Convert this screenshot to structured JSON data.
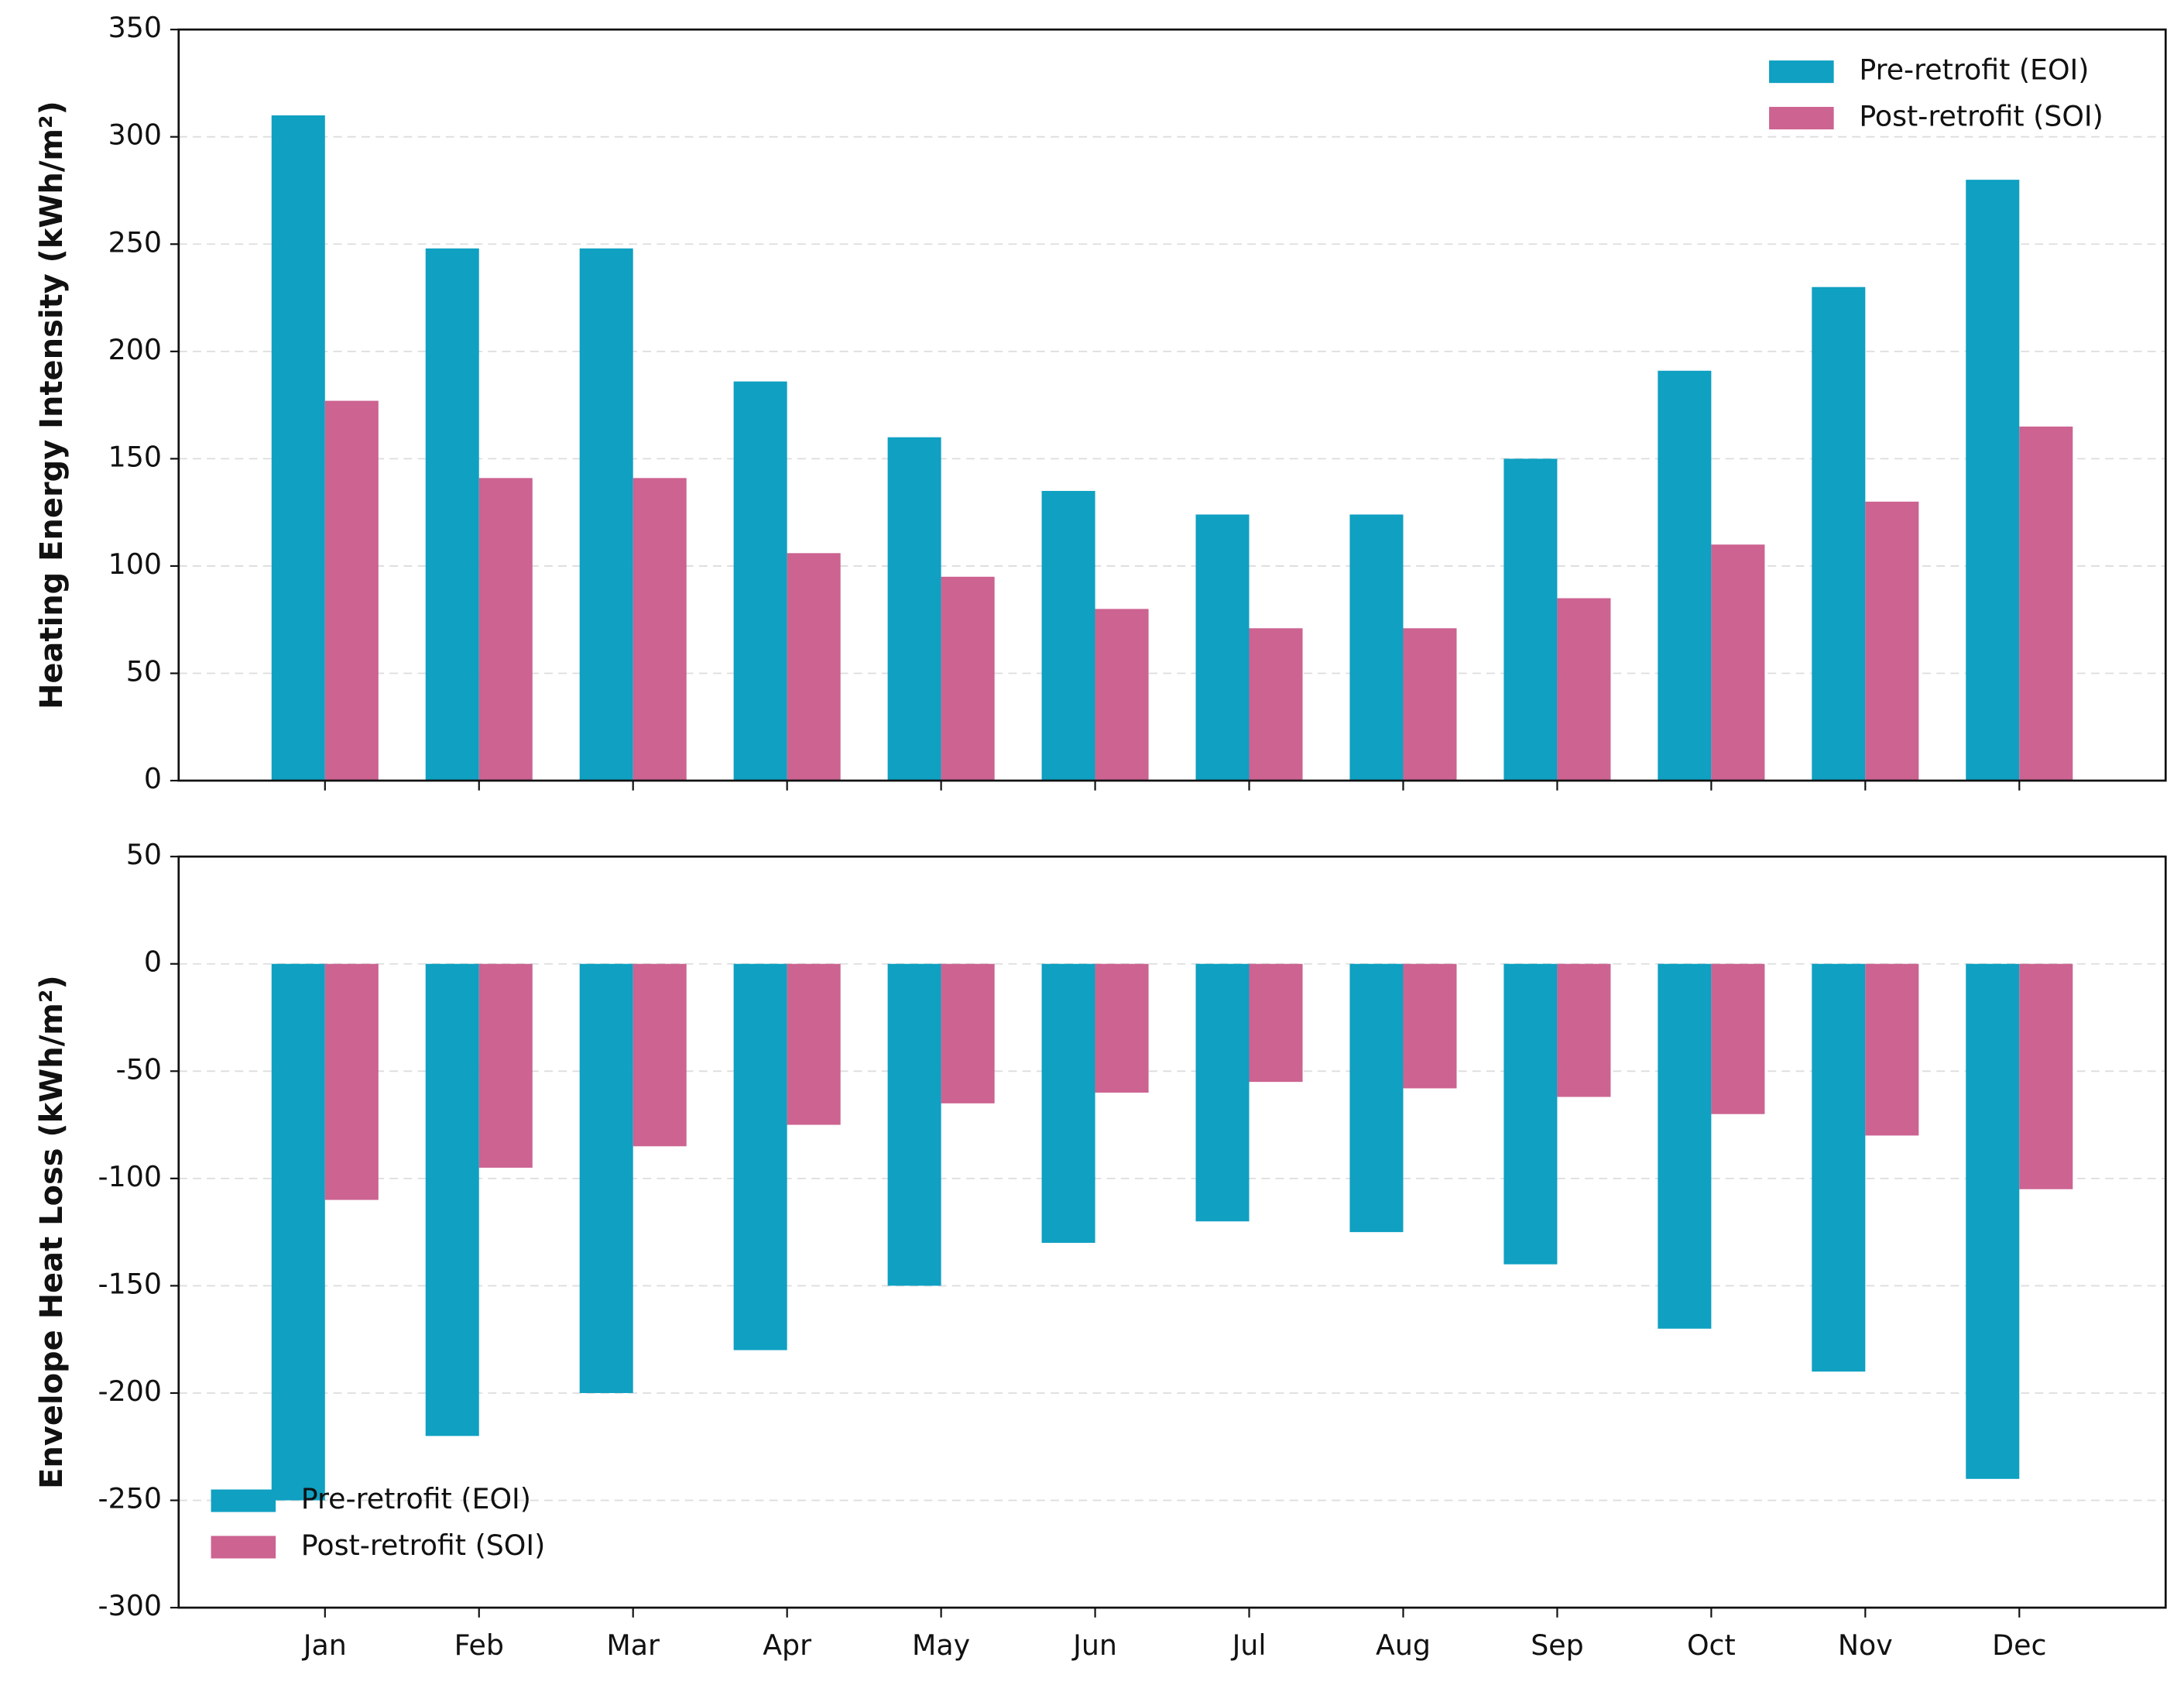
{
  "chart_data": [
    {
      "type": "bar",
      "ylabel": "Heating Energy Intensity (kWh/m²)",
      "ylim": [
        0,
        350
      ],
      "yticks": [
        0,
        50,
        100,
        150,
        200,
        250,
        300,
        350
      ],
      "grid": true,
      "legend": "upper right",
      "series": [
        {
          "name": "Pre-retrofit (EOI)",
          "color": "#0fa0c2",
          "values": [
            310,
            248,
            248,
            186,
            160,
            135,
            124,
            124,
            150,
            191,
            230,
            280
          ]
        },
        {
          "name": "Post-retrofit (SOI)",
          "color": "#cc6391",
          "values": [
            177,
            141,
            141,
            106,
            95,
            80,
            71,
            71,
            85,
            110,
            130,
            165
          ]
        }
      ]
    },
    {
      "type": "bar",
      "ylabel": "Envelope Heat Loss (kWh/m²)",
      "categories": [
        "Jan",
        "Feb",
        "Mar",
        "Apr",
        "May",
        "Jun",
        "Jul",
        "Aug",
        "Sep",
        "Oct",
        "Nov",
        "Dec"
      ],
      "ylim": [
        -300,
        50
      ],
      "yticks": [
        -300,
        -250,
        -200,
        -150,
        -100,
        -50,
        0,
        50
      ],
      "grid": true,
      "legend": "lower left",
      "series": [
        {
          "name": "Pre-retrofit (EOI)",
          "color": "#0fa0c2",
          "values": [
            -250,
            -220,
            -200,
            -180,
            -150,
            -130,
            -120,
            -125,
            -140,
            -170,
            -190,
            -240
          ]
        },
        {
          "name": "Post-retrofit (SOI)",
          "color": "#cc6391",
          "values": [
            -110,
            -95,
            -85,
            -75,
            -65,
            -60,
            -55,
            -58,
            -62,
            -70,
            -80,
            -105
          ]
        }
      ]
    }
  ]
}
